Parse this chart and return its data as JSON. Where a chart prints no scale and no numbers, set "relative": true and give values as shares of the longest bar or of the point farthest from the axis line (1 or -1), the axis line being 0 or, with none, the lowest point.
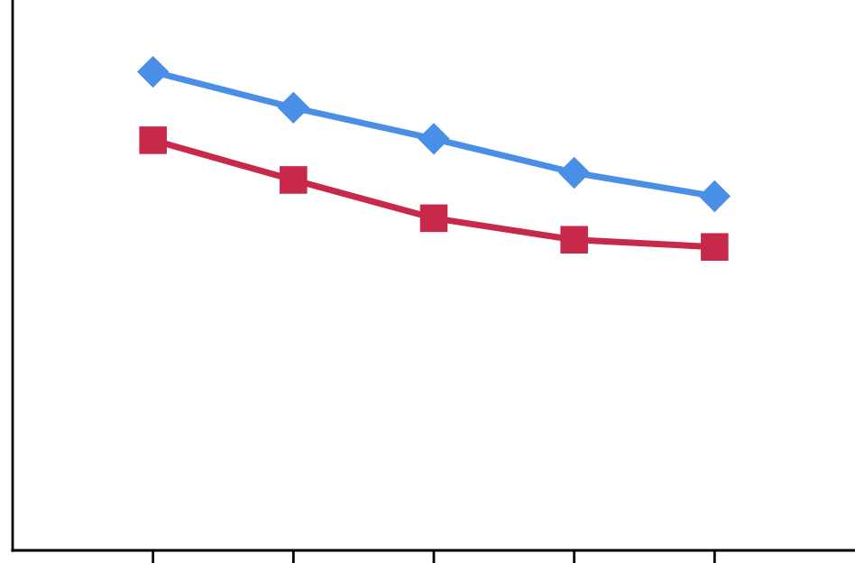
{
  "chart_data": {
    "type": "line",
    "relative": true,
    "categories": [
      null,
      null,
      null,
      null,
      null
    ],
    "grid": false,
    "line_style": "solid",
    "series": [
      {
        "color": "#4a8fe7",
        "marker": "diamond",
        "values": [
          1,
          0.925,
          0.86,
          0.789,
          0.74
        ]
      },
      {
        "color": "#c8284a",
        "marker": "square",
        "values": [
          0.857,
          0.774,
          0.694,
          0.649,
          0.634
        ]
      }
    ]
  }
}
